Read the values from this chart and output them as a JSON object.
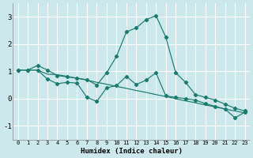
{
  "xlabel": "Humidex (Indice chaleur)",
  "bg_color": "#cce8ec",
  "grid_color": "#ffffff",
  "line_color": "#1a7a6e",
  "x_ticks": [
    0,
    1,
    2,
    3,
    4,
    5,
    6,
    7,
    8,
    9,
    10,
    11,
    12,
    13,
    14,
    15,
    16,
    17,
    18,
    19,
    20,
    21,
    22,
    23
  ],
  "y_ticks": [
    -1,
    0,
    1,
    2,
    3
  ],
  "ylim": [
    -1.5,
    3.5
  ],
  "xlim": [
    -0.5,
    23.5
  ],
  "line1_x": [
    0,
    1,
    2,
    3,
    4,
    5,
    6,
    7,
    8,
    9,
    10,
    11,
    12,
    13,
    14,
    15,
    16,
    17,
    18,
    19,
    20,
    21,
    22,
    23
  ],
  "line1_y": [
    1.05,
    1.05,
    1.22,
    1.05,
    0.85,
    0.8,
    0.75,
    0.7,
    0.5,
    0.95,
    1.55,
    2.45,
    2.6,
    2.9,
    3.05,
    2.25,
    0.95,
    0.6,
    0.15,
    0.05,
    -0.05,
    -0.2,
    -0.35,
    -0.45
  ],
  "line2_x": [
    0,
    1,
    2,
    3,
    4,
    5,
    6,
    7,
    8,
    9,
    10,
    11,
    12,
    13,
    14,
    15,
    16,
    17,
    18,
    19,
    20,
    21,
    22,
    23
  ],
  "line2_y": [
    1.05,
    1.05,
    1.05,
    0.9,
    0.88,
    0.82,
    0.75,
    0.68,
    0.6,
    0.53,
    0.45,
    0.38,
    0.3,
    0.23,
    0.15,
    0.08,
    0.0,
    -0.08,
    -0.15,
    -0.23,
    -0.3,
    -0.38,
    -0.45,
    -0.52
  ],
  "line3_x": [
    0,
    1,
    2,
    3,
    4,
    5,
    6,
    7,
    8,
    9,
    10,
    11,
    12,
    13,
    14,
    15,
    16,
    17,
    18,
    19,
    20,
    21,
    22,
    23
  ],
  "line3_y": [
    1.05,
    1.05,
    1.05,
    0.72,
    0.55,
    0.6,
    0.57,
    0.05,
    -0.1,
    0.4,
    0.48,
    0.82,
    0.52,
    0.68,
    0.95,
    0.1,
    0.05,
    0.0,
    -0.05,
    -0.18,
    -0.28,
    -0.38,
    -0.7,
    -0.5
  ]
}
